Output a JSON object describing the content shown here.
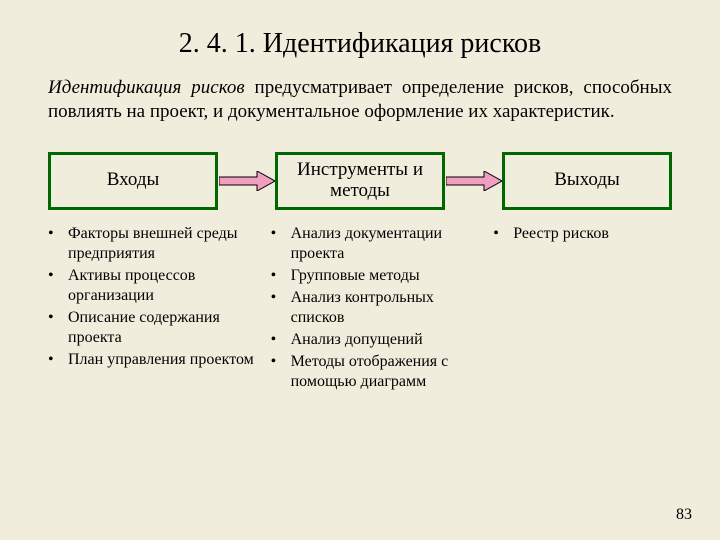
{
  "background_color": "#f1eddd",
  "title": "2. 4. 1. Идентификация рисков",
  "description_term": "Идентификация рисков",
  "description_rest": " предусматривает определение рисков, способных повлиять на проект, и документальное оформление их характеристик.",
  "boxes": {
    "border_color": "#006600",
    "inputs_label": "Входы",
    "tools_label": "Инструменты и методы",
    "outputs_label": "Выходы"
  },
  "arrow": {
    "fill": "#f19ec0",
    "stroke": "#000000"
  },
  "columns": {
    "inputs": [
      "Факторы внешней среды предприятия",
      "Активы процессов организации",
      "Описание содержания проекта",
      "План управления проектом"
    ],
    "tools": [
      "Анализ документации проекта",
      "Групповые методы",
      "Анализ контрольных списков",
      "Анализ допущений",
      "Методы отображения с помощью диаграмм"
    ],
    "outputs": [
      "Реестр рисков"
    ]
  },
  "bullet": "•",
  "page_number": "83",
  "col_widths": {
    "c1": 216,
    "c2": 216,
    "c3": 180
  }
}
